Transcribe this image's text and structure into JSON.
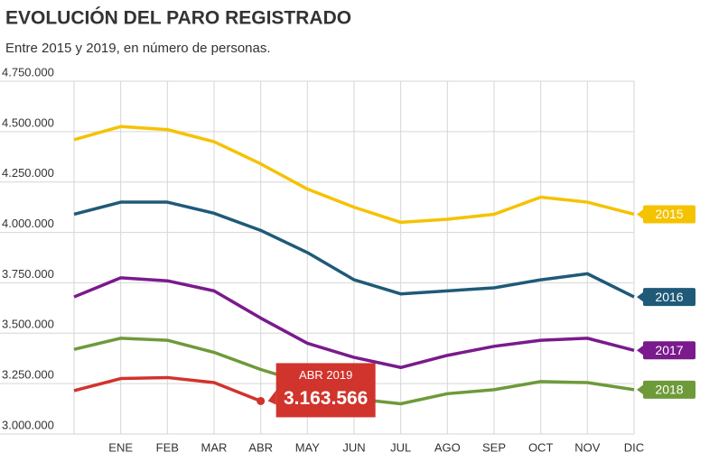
{
  "chart_data": {
    "type": "line",
    "title": "EVOLUCIÓN DEL PARO REGISTRADO",
    "subtitle": "Entre 2015 y 2019, en número de personas.",
    "categories": [
      null,
      "ENE",
      "FEB",
      "MAR",
      "ABR",
      "MAY",
      "JUN",
      "JUL",
      "AGO",
      "SEP",
      "OCT",
      "NOV",
      "DIC"
    ],
    "series": [
      {
        "name": "2015",
        "color": "#f5c200",
        "values": [
          4460000,
          4525000,
          4510000,
          4450000,
          4340000,
          4215000,
          4125000,
          4050000,
          4065000,
          4090000,
          4175000,
          4150000,
          4090000
        ]
      },
      {
        "name": "2016",
        "color": "#1f5a78",
        "values": [
          4090000,
          4150000,
          4150000,
          4095000,
          4010000,
          3900000,
          3765000,
          3695000,
          3710000,
          3725000,
          3765000,
          3795000,
          3680000
        ]
      },
      {
        "name": "2017",
        "color": "#7a1a8c",
        "values": [
          3680000,
          3775000,
          3760000,
          3710000,
          3575000,
          3450000,
          3380000,
          3330000,
          3390000,
          3435000,
          3465000,
          3475000,
          3415000
        ]
      },
      {
        "name": "2018",
        "color": "#6e9a3a",
        "values": [
          3420000,
          3475000,
          3465000,
          3405000,
          3320000,
          3250000,
          3175000,
          3150000,
          3200000,
          3220000,
          3260000,
          3255000,
          3220000
        ]
      },
      {
        "color": "#d0342c",
        "values": [
          3215000,
          3275000,
          3280000,
          3255000,
          3163566,
          null,
          null,
          null,
          null,
          null,
          null,
          null,
          null
        ],
        "value_labels": [
          null,
          null,
          null,
          null,
          "3.163.566",
          null,
          null,
          null,
          null,
          null,
          null,
          null,
          null
        ]
      }
    ],
    "annotation": "ABR 2019",
    "ylim": [
      3000000,
      4750000
    ],
    "yticks": [
      {
        "value": 3000000,
        "label": "3.000.000"
      },
      {
        "value": 3250000,
        "label": "3.250.000"
      },
      {
        "value": 3500000,
        "label": "3.500.000"
      },
      {
        "value": 3750000,
        "label": "3.750.000"
      },
      {
        "value": 4000000,
        "label": "4.000.000"
      },
      {
        "value": 4250000,
        "label": "4.250.000"
      },
      {
        "value": 4500000,
        "label": "4.500.000"
      },
      {
        "value": 4750000,
        "label": "4.750.000"
      }
    ],
    "grid": true
  }
}
